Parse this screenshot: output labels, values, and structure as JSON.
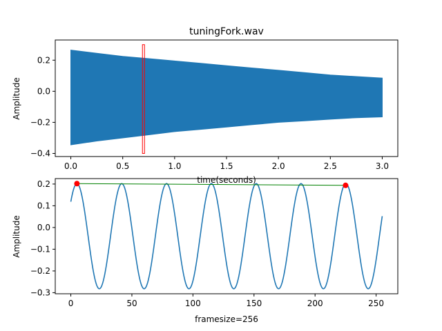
{
  "figure": {
    "background": "#ffffff"
  },
  "chart_data": [
    {
      "type": "line",
      "id": "waveform",
      "title": "tuningFork.wav",
      "xlabel": "time(seconds)",
      "ylabel": "Amplitude",
      "xlim": [
        -0.15,
        3.15
      ],
      "ylim": [
        -0.42,
        0.33
      ],
      "xticks": [
        0.0,
        0.5,
        1.0,
        1.5,
        2.0,
        2.5,
        3.0
      ],
      "xtick_labels": [
        "0.0",
        "0.5",
        "1.0",
        "1.5",
        "2.0",
        "2.5",
        "3.0"
      ],
      "yticks": [
        0.2,
        0.0,
        -0.2,
        -0.4
      ],
      "ytick_labels": [
        "0.2",
        "0.0",
        "−0.2",
        "−0.4"
      ],
      "grid": false,
      "series": [
        {
          "kind": "envelope-fill",
          "color": "#1f77b4",
          "x": [
            0.0,
            0.25,
            0.5,
            0.75,
            1.0,
            1.25,
            1.5,
            1.75,
            2.0,
            2.25,
            2.5,
            2.75,
            3.0
          ],
          "upper": [
            0.265,
            0.245,
            0.225,
            0.21,
            0.195,
            0.18,
            0.165,
            0.15,
            0.135,
            0.12,
            0.105,
            0.095,
            0.085
          ],
          "lower": [
            -0.345,
            -0.32,
            -0.3,
            -0.28,
            -0.26,
            -0.245,
            -0.23,
            -0.215,
            -0.2,
            -0.19,
            -0.18,
            -0.17,
            -0.165
          ]
        }
      ],
      "markers": [
        {
          "kind": "vertical-span",
          "color": "#ff0000",
          "x": [
            0.69,
            0.71
          ],
          "y": [
            -0.4,
            0.3
          ]
        }
      ]
    },
    {
      "type": "line",
      "id": "frame",
      "title": "",
      "xlabel": "framesize=256",
      "ylabel": "Amplitude",
      "xlim": [
        -12.75,
        267.75
      ],
      "ylim": [
        -0.305,
        0.225
      ],
      "xticks": [
        0,
        50,
        100,
        150,
        200,
        250
      ],
      "xtick_labels": [
        "0",
        "50",
        "100",
        "150",
        "200",
        "250"
      ],
      "yticks": [
        0.2,
        0.1,
        0.0,
        -0.1,
        -0.2,
        -0.3
      ],
      "ytick_labels": [
        "0.2",
        "0.1",
        "0.0",
        "−0.1",
        "−0.2",
        "−0.3"
      ],
      "grid": false,
      "series": [
        {
          "kind": "sinusoid",
          "color": "#1f77b4",
          "x_range": [
            0,
            255
          ],
          "offset": -0.04,
          "amplitude": 0.242,
          "period": 36.7,
          "phase_peak_x": 5
        }
      ],
      "peaks": {
        "color": "#ff0000",
        "points": [
          {
            "x": 5,
            "y": 0.202
          },
          {
            "x": 225,
            "y": 0.194
          }
        ]
      },
      "peak_line": {
        "color": "#008000"
      }
    }
  ]
}
